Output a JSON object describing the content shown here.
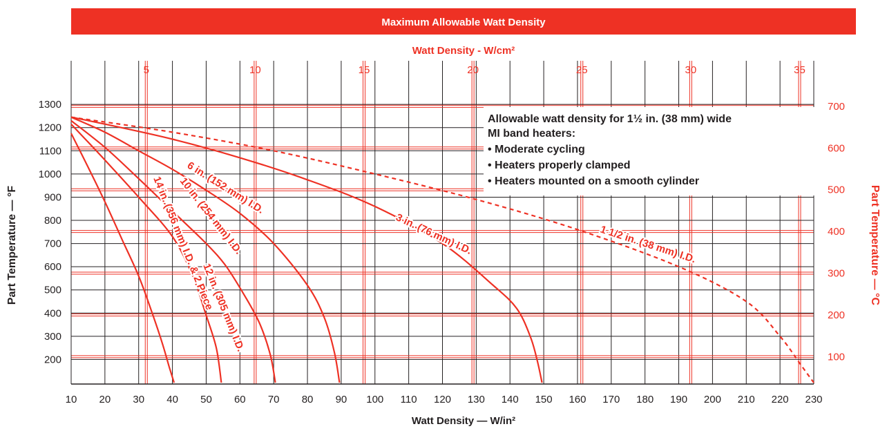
{
  "chart_data": {
    "type": "line",
    "title": "Maximum Allowable Watt Density",
    "top_axis": {
      "label": "Watt Density - W/cm²",
      "ticks": [
        "5",
        "10",
        "15",
        "20",
        "25",
        "30",
        "35"
      ],
      "tick_values": [
        5,
        10,
        15,
        20,
        25,
        30,
        35
      ]
    },
    "xlabel": "Watt Density — W/in²",
    "x_ticks": [
      "10",
      "20",
      "30",
      "40",
      "50",
      "60",
      "70",
      "80",
      "90",
      "100",
      "110",
      "120",
      "130",
      "140",
      "150",
      "160",
      "170",
      "180",
      "190",
      "200",
      "210",
      "220",
      "230"
    ],
    "xlim": [
      10,
      230
    ],
    "ylabel": "Part Temperature — °F",
    "y_ticks": [
      "200",
      "300",
      "400",
      "500",
      "600",
      "700",
      "800",
      "900",
      "1000",
      "1100",
      "1200",
      "1300"
    ],
    "ylim": [
      100,
      1330
    ],
    "right_axis": {
      "label": "Part Temperature — °C",
      "ticks": [
        "100",
        "200",
        "300",
        "400",
        "500",
        "600",
        "700"
      ],
      "tick_values": [
        100,
        200,
        300,
        400,
        500,
        600,
        700
      ]
    },
    "grid": true,
    "note": {
      "heading": "Allowable watt density for 1½ in. (38 mm) wide",
      "heading2": "MI band heaters:",
      "bullets": [
        "Moderate cycling",
        "Heaters properly clamped",
        "Heaters mounted on a smooth cylinder"
      ]
    },
    "series": [
      {
        "name": "14 in. (356 mm) I.D. & 2 Piece",
        "style": "solid",
        "x": [
          10,
          15,
          20,
          25,
          30,
          34,
          37,
          39,
          40.5
        ],
        "y": [
          1175,
          1030,
          880,
          720,
          560,
          400,
          270,
          170,
          100
        ]
      },
      {
        "name": "12 in. (305 mm) I.D.",
        "style": "solid",
        "x": [
          10,
          20,
          30,
          40,
          46,
          50,
          53,
          54.5
        ],
        "y": [
          1215,
          1060,
          900,
          730,
          560,
          390,
          250,
          100
        ]
      },
      {
        "name": "10 in. (254 mm) I.D.",
        "style": "solid",
        "x": [
          10,
          20,
          30,
          40,
          50,
          56,
          62,
          66,
          69,
          70.5
        ],
        "y": [
          1230,
          1115,
          980,
          840,
          700,
          600,
          460,
          350,
          220,
          100
        ]
      },
      {
        "name": "6 in. (152 mm) I.D.",
        "style": "solid",
        "x": [
          10,
          20,
          30,
          40,
          50,
          60,
          70,
          80,
          85,
          88,
          89.5
        ],
        "y": [
          1245,
          1180,
          1100,
          1020,
          930,
          830,
          700,
          520,
          380,
          230,
          100
        ]
      },
      {
        "name": "3 in. (76 mm) I.D.",
        "style": "solid",
        "x": [
          10,
          20,
          40,
          60,
          80,
          100,
          120,
          135,
          142,
          146,
          148,
          149.5
        ],
        "y": [
          1245,
          1215,
          1150,
          1070,
          975,
          860,
          700,
          520,
          420,
          300,
          200,
          100
        ]
      },
      {
        "name": "1 1/2 in. (38 mm) I.D.",
        "style": "dashed",
        "x": [
          10,
          40,
          70,
          100,
          130,
          160,
          190,
          210,
          220,
          226,
          230
        ],
        "y": [
          1245,
          1180,
          1100,
          1000,
          890,
          760,
          600,
          450,
          300,
          180,
          100
        ]
      }
    ]
  }
}
